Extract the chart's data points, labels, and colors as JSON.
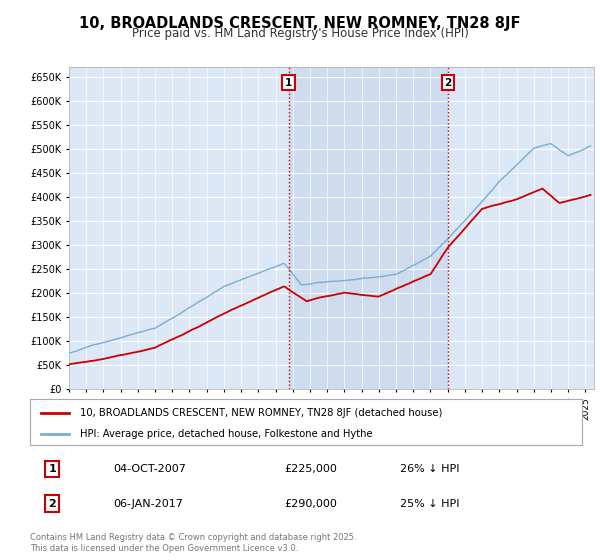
{
  "title": "10, BROADLANDS CRESCENT, NEW ROMNEY, TN28 8JF",
  "subtitle": "Price paid vs. HM Land Registry's House Price Index (HPI)",
  "ylim": [
    0,
    670000
  ],
  "yticks": [
    0,
    50000,
    100000,
    150000,
    200000,
    250000,
    300000,
    350000,
    400000,
    450000,
    500000,
    550000,
    600000,
    650000
  ],
  "bg_color": "#dce8f5",
  "hpi_color": "#7aadd4",
  "price_color": "#cc0000",
  "vline_color": "#cc0000",
  "sale1_date_x": 2007.76,
  "sale1_label": "1",
  "sale1_date_str": "04-OCT-2007",
  "sale1_price": 225000,
  "sale1_pct": "26% ↓ HPI",
  "sale2_date_x": 2017.02,
  "sale2_label": "2",
  "sale2_date_str": "06-JAN-2017",
  "sale2_price": 290000,
  "sale2_pct": "25% ↓ HPI",
  "legend_label1": "10, BROADLANDS CRESCENT, NEW ROMNEY, TN28 8JF (detached house)",
  "legend_label2": "HPI: Average price, detached house, Folkestone and Hythe",
  "footer": "Contains HM Land Registry data © Crown copyright and database right 2025.\nThis data is licensed under the Open Government Licence v3.0.",
  "xmin": 1995.0,
  "xmax": 2025.5,
  "shade_between_vlines": true,
  "shade_color": "#cddcee"
}
